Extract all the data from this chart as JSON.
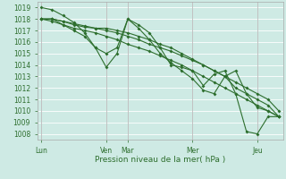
{
  "xlabel": "Pression niveau de la mer( hPa )",
  "bg_color": "#ceeae4",
  "grid_color": "#ffffff",
  "line_color": "#2d6e2d",
  "ylim": [
    1007.5,
    1019.5
  ],
  "yticks": [
    1008,
    1009,
    1010,
    1011,
    1012,
    1013,
    1014,
    1015,
    1016,
    1017,
    1018,
    1019
  ],
  "xtick_labels": [
    "Lun",
    "Ven",
    "Mar",
    "Mer",
    "Jeu"
  ],
  "xtick_pos": [
    0,
    3,
    4,
    7,
    10
  ],
  "xlim": [
    -0.2,
    11.2
  ],
  "marker_size": 2.0,
  "linewidth": 0.8,
  "series": {
    "x1": [
      0,
      0.5,
      1.0,
      1.5,
      2.0,
      2.5,
      3.0,
      3.5,
      4.0,
      4.5,
      5.0,
      5.5,
      6.0,
      6.5,
      7.0,
      7.5,
      8.0,
      8.5,
      9.0,
      9.5,
      10.0,
      10.5,
      11.0
    ],
    "y1": [
      1018.0,
      1018.0,
      1017.8,
      1017.5,
      1017.3,
      1017.2,
      1017.2,
      1017.0,
      1016.8,
      1016.5,
      1016.2,
      1015.8,
      1015.5,
      1015.0,
      1014.5,
      1014.0,
      1013.5,
      1013.0,
      1012.0,
      1011.5,
      1011.0,
      1010.5,
      1009.5
    ],
    "x2": [
      0,
      0.5,
      1.0,
      1.5,
      2.0,
      2.5,
      3.0,
      3.5,
      4.0,
      4.5,
      5.0,
      5.5,
      6.0,
      6.5,
      7.0,
      7.5,
      8.0,
      8.5,
      9.0,
      9.5,
      10.0,
      10.5,
      11.0
    ],
    "y2": [
      1018.0,
      1018.0,
      1017.8,
      1017.6,
      1017.4,
      1017.2,
      1017.0,
      1016.8,
      1016.5,
      1016.2,
      1015.8,
      1015.5,
      1015.2,
      1014.8,
      1014.4,
      1014.0,
      1013.5,
      1013.0,
      1012.5,
      1012.0,
      1011.5,
      1011.0,
      1010.0
    ],
    "x3": [
      0,
      0.5,
      1.0,
      1.5,
      2.0,
      2.5,
      3.0,
      3.5,
      4.0,
      4.5,
      5.0,
      5.5,
      6.0,
      6.5,
      7.0,
      7.5,
      8.0,
      8.5,
      9.0,
      9.5,
      10.0,
      10.5,
      11.0
    ],
    "y3": [
      1018.0,
      1017.8,
      1017.5,
      1017.2,
      1017.0,
      1016.8,
      1016.5,
      1016.2,
      1015.8,
      1015.5,
      1015.2,
      1014.8,
      1014.4,
      1014.0,
      1013.5,
      1013.0,
      1012.5,
      1012.0,
      1011.5,
      1011.0,
      1010.5,
      1010.0,
      1009.5
    ],
    "x4": [
      0,
      0.5,
      1.0,
      1.5,
      2.0,
      2.5,
      3.0,
      3.5,
      4.0,
      4.5,
      5.0,
      5.5,
      6.0,
      6.5,
      7.0,
      7.5,
      8.0,
      8.5,
      9.0,
      9.5,
      10.0,
      10.5,
      11.0
    ],
    "y4": [
      1019.0,
      1018.8,
      1018.3,
      1017.7,
      1016.8,
      1015.5,
      1013.8,
      1015.0,
      1018.0,
      1017.5,
      1016.8,
      1015.5,
      1014.0,
      1013.8,
      1013.5,
      1012.2,
      1013.2,
      1013.5,
      1011.5,
      1008.2,
      1008.0,
      1009.5,
      1009.5
    ],
    "x5": [
      0,
      0.5,
      1.0,
      1.5,
      2.0,
      2.5,
      3.0,
      3.5,
      4.0,
      4.5,
      5.0,
      5.5,
      6.0,
      6.5,
      7.0,
      7.5,
      8.0,
      8.5,
      9.0,
      9.5,
      10.0,
      10.5,
      11.0
    ],
    "y5": [
      1018.0,
      1018.0,
      1017.5,
      1017.0,
      1016.5,
      1015.5,
      1015.0,
      1015.5,
      1018.0,
      1017.2,
      1016.2,
      1015.0,
      1014.2,
      1013.5,
      1012.8,
      1011.8,
      1011.5,
      1013.0,
      1013.5,
      1011.5,
      1010.3,
      1010.0,
      1009.5
    ]
  }
}
